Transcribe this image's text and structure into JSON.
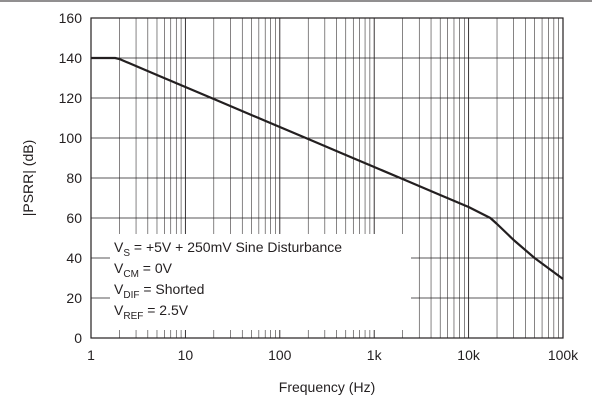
{
  "chart_data": {
    "type": "line",
    "title": "",
    "xlabel": "Frequency (Hz)",
    "ylabel": "|PSRR| (dB)",
    "x_scale": "log",
    "xlim": [
      1,
      100000
    ],
    "ylim": [
      0,
      160
    ],
    "grid": true,
    "x_ticks": [
      {
        "value": 1,
        "label": "1"
      },
      {
        "value": 10,
        "label": "10"
      },
      {
        "value": 100,
        "label": "100"
      },
      {
        "value": 1000,
        "label": "1k"
      },
      {
        "value": 10000,
        "label": "10k"
      },
      {
        "value": 100000,
        "label": "100k"
      }
    ],
    "y_ticks": [
      {
        "value": 0,
        "label": "0"
      },
      {
        "value": 20,
        "label": "20"
      },
      {
        "value": 40,
        "label": "40"
      },
      {
        "value": 60,
        "label": "60"
      },
      {
        "value": 80,
        "label": "80"
      },
      {
        "value": 100,
        "label": "100"
      },
      {
        "value": 120,
        "label": "120"
      },
      {
        "value": 140,
        "label": "140"
      },
      {
        "value": 160,
        "label": "160"
      }
    ],
    "series": [
      {
        "x": [
          1,
          1.8,
          2,
          5,
          10,
          20,
          50,
          100,
          200,
          500,
          1000,
          2000,
          5000,
          10000,
          17000,
          20000,
          30000,
          50000,
          100000
        ],
        "y": [
          140,
          140,
          139.5,
          131.5,
          125.5,
          119.5,
          111.5,
          105.5,
          99.5,
          91.5,
          85.5,
          79.5,
          71.5,
          65.5,
          60,
          57,
          49,
          40,
          29.5
        ]
      }
    ],
    "annotation": [
      {
        "base": "V",
        "sub": "S",
        "rest": " = +5V + 250mV Sine Disturbance"
      },
      {
        "base": "V",
        "sub": "CM",
        "rest": " = 0V"
      },
      {
        "base": "V",
        "sub": "DIF",
        "rest": " = Shorted"
      },
      {
        "base": "V",
        "sub": "REF",
        "rest": " = 2.5V"
      }
    ],
    "colors": {
      "line": "#231f20",
      "grid": "#231f20",
      "background": "#ffffff"
    }
  }
}
